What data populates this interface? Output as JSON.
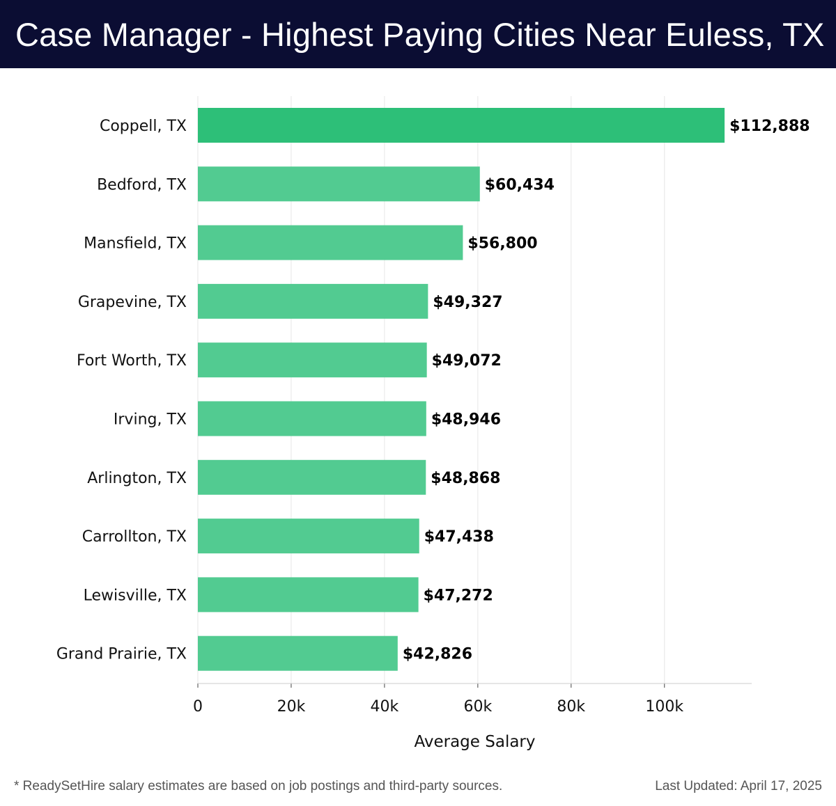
{
  "header": {
    "title": "Case Manager - Highest Paying Cities Near Euless, TX"
  },
  "colors": {
    "header_bg": "#0b0d33",
    "top_bar": "#2dbf78",
    "bar": "#52cb91",
    "grid": "#e6e6e6",
    "axis": "#cccccc"
  },
  "chart_data": {
    "type": "bar",
    "orientation": "horizontal",
    "categories": [
      "Coppell, TX",
      "Bedford, TX",
      "Mansfield, TX",
      "Grapevine, TX",
      "Fort Worth, TX",
      "Irving, TX",
      "Arlington, TX",
      "Carrollton, TX",
      "Lewisville, TX",
      "Grand Prairie, TX"
    ],
    "values": [
      112888,
      60434,
      56800,
      49327,
      49072,
      48946,
      48868,
      47438,
      47272,
      42826
    ],
    "value_labels": [
      "$112,888",
      "$60,434",
      "$56,800",
      "$49,327",
      "$49,072",
      "$48,946",
      "$48,868",
      "$47,438",
      "$47,272",
      "$42,826"
    ],
    "xlabel": "Average Salary",
    "ylabel": "",
    "xlim": [
      0,
      118700
    ],
    "xticks": [
      0,
      20000,
      40000,
      60000,
      80000,
      100000
    ],
    "xtick_labels": [
      "0",
      "20k",
      "40k",
      "60k",
      "80k",
      "100k"
    ],
    "grid": "vertical",
    "legend": "none"
  },
  "footer": {
    "note": "* ReadySetHire salary estimates are based on job postings and third-party sources.",
    "updated": "Last Updated: April 17, 2025"
  }
}
